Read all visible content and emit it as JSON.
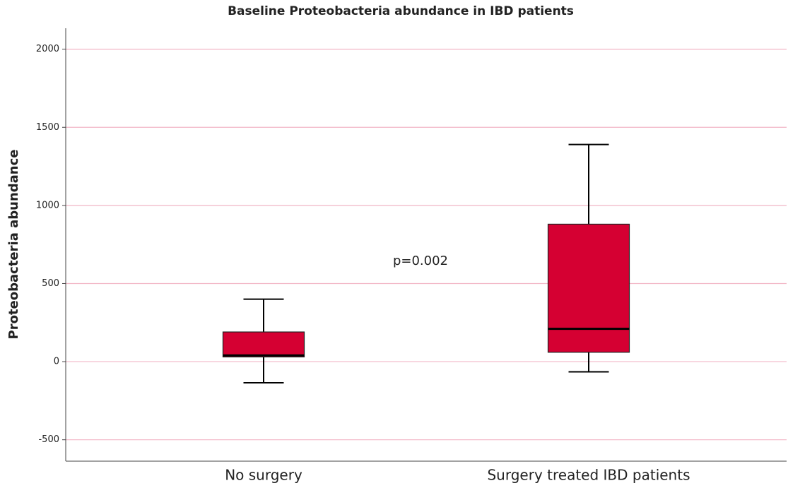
{
  "chart_data": {
    "type": "box",
    "title": "Baseline Proteobacteria abundance in IBD patients",
    "y_label": "Proteobacteria abundance",
    "annotation": "p=0.002",
    "categories": [
      "No surgery",
      "Surgery treated IBD patients"
    ],
    "boxes": [
      {
        "whisker_low": -135,
        "q1": 30,
        "median": 40,
        "q3": 190,
        "whisker_high": 400
      },
      {
        "whisker_low": -65,
        "q1": 60,
        "median": 210,
        "q3": 880,
        "whisker_high": 1390
      }
    ],
    "color": "#d50032",
    "grid": true,
    "grid_color": "#f2b6c6",
    "ylim": [
      -637,
      2134
    ],
    "yticks": [
      -500,
      0,
      500,
      1000,
      1500,
      2000
    ]
  }
}
